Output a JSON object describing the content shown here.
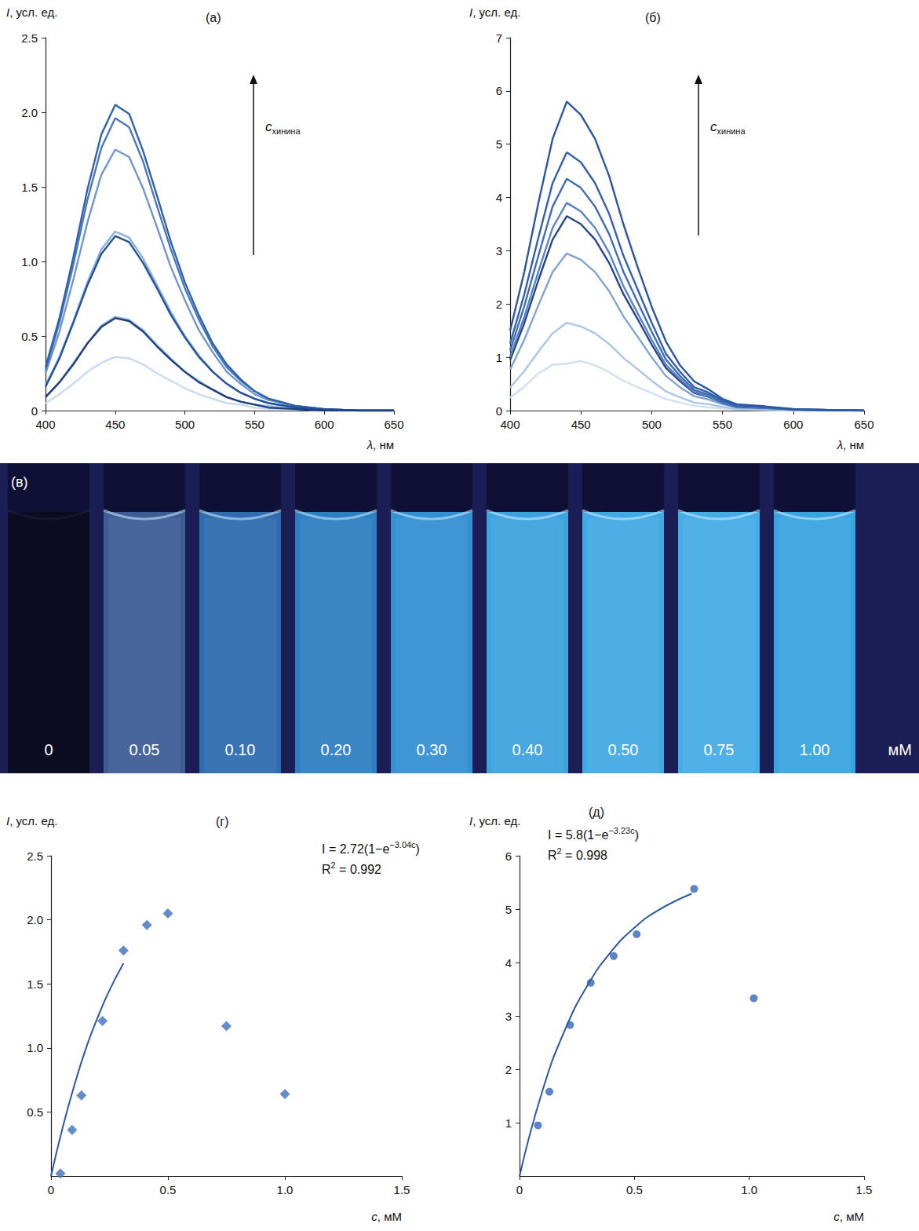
{
  "chart_data": [
    {
      "type": "line",
      "title": "(а)",
      "y_label": "I, усл. ед.",
      "x_label": "λ, нм",
      "x": [
        400,
        410,
        420,
        430,
        440,
        450,
        460,
        470,
        480,
        490,
        500,
        510,
        520,
        530,
        540,
        550,
        560,
        580,
        600,
        625,
        650
      ],
      "xlim": [
        400,
        650
      ],
      "xticks": [
        400,
        450,
        500,
        550,
        600,
        650
      ],
      "ylim": [
        0,
        2.5
      ],
      "yticks": [
        0,
        0.5,
        {
          "value": 1,
          "label": "1.0"
        },
        1.5,
        {
          "value": 2,
          "label": "2.0"
        },
        2.5
      ],
      "grid": false,
      "annotations": [
        {
          "text": "c",
          "subscript": "хинина"
        }
      ],
      "series": [
        {
          "color": "#c6dbef",
          "values": [
            0.05,
            0.11,
            0.18,
            0.26,
            0.32,
            0.36,
            0.35,
            0.31,
            0.25,
            0.2,
            0.15,
            0.11,
            0.08,
            0.05,
            0.04,
            0.02,
            0.01,
            0.01,
            0,
            0,
            0
          ]
        },
        {
          "color": "#9ebfe0",
          "values": [
            0.09,
            0.19,
            0.32,
            0.45,
            0.57,
            0.63,
            0.61,
            0.54,
            0.44,
            0.35,
            0.26,
            0.2,
            0.14,
            0.09,
            0.06,
            0.04,
            0.03,
            0.01,
            0,
            0,
            0
          ]
        },
        {
          "color": "#8aaedb",
          "values": [
            0.17,
            0.36,
            0.6,
            0.86,
            1.08,
            1.2,
            1.16,
            1.02,
            0.84,
            0.66,
            0.5,
            0.37,
            0.26,
            0.18,
            0.12,
            0.08,
            0.05,
            0.02,
            0.01,
            0,
            0
          ]
        },
        {
          "color": "#6f97cc",
          "values": [
            0.25,
            0.53,
            0.88,
            1.26,
            1.58,
            1.75,
            1.7,
            1.49,
            1.23,
            0.96,
            0.74,
            0.54,
            0.39,
            0.26,
            0.18,
            0.11,
            0.07,
            0.03,
            0.01,
            0,
            0
          ]
        },
        {
          "color": "#4a78be",
          "values": [
            0.27,
            0.59,
            0.98,
            1.41,
            1.76,
            1.96,
            1.9,
            1.67,
            1.37,
            1.08,
            0.82,
            0.61,
            0.43,
            0.29,
            0.2,
            0.13,
            0.08,
            0.03,
            0.01,
            0,
            0
          ]
        },
        {
          "color": "#2f62ad",
          "values": [
            0.29,
            0.62,
            1.03,
            1.48,
            1.85,
            2.05,
            1.99,
            1.74,
            1.44,
            1.13,
            0.86,
            0.64,
            0.45,
            0.31,
            0.21,
            0.13,
            0.08,
            0.03,
            0.01,
            0,
            0
          ]
        },
        {
          "color": "#24529a",
          "values": [
            0.16,
            0.35,
            0.59,
            0.84,
            1.05,
            1.17,
            1.13,
            0.99,
            0.82,
            0.64,
            0.49,
            0.36,
            0.26,
            0.18,
            0.12,
            0.08,
            0.05,
            0.02,
            0.01,
            0,
            0
          ]
        },
        {
          "color": "#1d3f7e",
          "values": [
            0.09,
            0.19,
            0.31,
            0.45,
            0.56,
            0.62,
            0.6,
            0.53,
            0.43,
            0.34,
            0.26,
            0.19,
            0.14,
            0.09,
            0.06,
            0.04,
            0.02,
            0.01,
            0,
            0,
            0
          ]
        }
      ]
    },
    {
      "type": "line",
      "title": "(б)",
      "y_label": "I, усл. ед.",
      "x_label": "λ, нм",
      "x": [
        400,
        410,
        420,
        430,
        440,
        450,
        460,
        470,
        480,
        490,
        500,
        510,
        520,
        530,
        540,
        550,
        560,
        580,
        600,
        625,
        650
      ],
      "xlim": [
        400,
        650
      ],
      "xticks": [
        400,
        450,
        500,
        550,
        600,
        650
      ],
      "ylim": [
        0,
        7
      ],
      "yticks": [
        0,
        1,
        2,
        3,
        4,
        5,
        6,
        7
      ],
      "grid": false,
      "annotations": [
        {
          "text": "c",
          "subscript": "хинина"
        }
      ],
      "series": [
        {
          "color": "#d0e0f2",
          "values": [
            0.24,
            0.45,
            0.7,
            0.86,
            0.88,
            0.93,
            0.85,
            0.72,
            0.56,
            0.44,
            0.33,
            0.22,
            0.15,
            0.09,
            0.06,
            0.04,
            0.02,
            0.01,
            0,
            0,
            0
          ]
        },
        {
          "color": "#a9c6e6",
          "values": [
            0.43,
            0.74,
            1.11,
            1.45,
            1.65,
            1.58,
            1.45,
            1.25,
            0.99,
            0.78,
            0.56,
            0.36,
            0.25,
            0.15,
            0.12,
            0.07,
            0.03,
            0.02,
            0.01,
            0,
            0
          ]
        },
        {
          "color": "#7ea4d4",
          "values": [
            0.77,
            1.33,
            1.98,
            2.6,
            2.95,
            2.83,
            2.6,
            2.24,
            1.77,
            1.39,
            1.0,
            0.65,
            0.44,
            0.27,
            0.21,
            0.12,
            0.06,
            0.04,
            0.01,
            0,
            0
          ]
        },
        {
          "color": "#24468a",
          "values": [
            0.95,
            1.64,
            2.45,
            3.21,
            3.65,
            3.5,
            3.21,
            2.77,
            2.19,
            1.72,
            1.24,
            0.8,
            0.55,
            0.33,
            0.26,
            0.15,
            0.07,
            0.05,
            0.02,
            0.01,
            0
          ]
        },
        {
          "color": "#5783c4",
          "values": [
            1.01,
            1.76,
            2.61,
            3.43,
            3.9,
            3.74,
            3.43,
            2.96,
            2.34,
            1.83,
            1.33,
            0.86,
            0.59,
            0.35,
            0.27,
            0.16,
            0.08,
            0.05,
            0.02,
            0.01,
            0
          ]
        },
        {
          "color": "#3f6db5",
          "values": [
            1.13,
            1.96,
            2.91,
            3.83,
            4.35,
            4.18,
            3.83,
            3.31,
            2.61,
            2.04,
            1.48,
            0.96,
            0.65,
            0.39,
            0.3,
            0.17,
            0.09,
            0.06,
            0.02,
            0.01,
            0
          ]
        },
        {
          "color": "#3360aa",
          "values": [
            1.26,
            2.18,
            3.25,
            4.27,
            4.85,
            4.66,
            4.27,
            3.69,
            2.91,
            2.28,
            1.65,
            1.07,
            0.73,
            0.44,
            0.34,
            0.19,
            0.1,
            0.07,
            0.02,
            0.01,
            0
          ]
        },
        {
          "color": "#2a579f",
          "values": [
            1.5,
            2.6,
            3.9,
            5.1,
            5.8,
            5.55,
            5.1,
            4.4,
            3.5,
            2.7,
            1.95,
            1.3,
            0.85,
            0.55,
            0.4,
            0.22,
            0.12,
            0.08,
            0.03,
            0.01,
            0
          ]
        }
      ]
    },
    {
      "type": "scatter",
      "title": "(г)",
      "y_label": "I, усл. ед.",
      "x_label": "c, мМ",
      "xlim": [
        0,
        1.5
      ],
      "xticks": [
        0,
        0.5,
        {
          "value": 1,
          "label": "1.0"
        },
        1.5
      ],
      "ylim": [
        0,
        2.5
      ],
      "yticks": [
        0.5,
        {
          "value": 1,
          "label": "1.0"
        },
        1.5,
        {
          "value": 2,
          "label": "2.0"
        },
        2.5
      ],
      "grid": false,
      "annotations": [
        {
          "text": "I = 2.72(1−e",
          "superscript": "−3.04c",
          "after": ")"
        },
        {
          "text": "R",
          "superscript": "2",
          "after": " = 0.992"
        }
      ],
      "series": [
        {
          "type": "scatter",
          "marker": "diamond",
          "color": "#3d6fc0",
          "x": [
            0.04,
            0.09,
            0.13,
            0.22,
            0.31,
            0.41,
            0.5,
            0.75,
            1.0
          ],
          "values": [
            0.02,
            0.36,
            0.63,
            1.21,
            1.76,
            1.96,
            2.05,
            1.17,
            0.64
          ]
        },
        {
          "type": "line",
          "color": "#2a5aa6",
          "x": [
            0,
            0.05,
            0.1,
            0.15,
            0.2,
            0.25,
            0.31
          ],
          "values": [
            0,
            0.38,
            0.71,
            1.0,
            1.24,
            1.45,
            1.66
          ]
        }
      ]
    },
    {
      "type": "scatter",
      "title": "(д)",
      "y_label": "I, усл. ед.",
      "x_label": "c, мМ",
      "xlim": [
        0,
        1.5
      ],
      "xticks": [
        0,
        0.5,
        {
          "value": 1,
          "label": "1.0"
        },
        1.5
      ],
      "ylim": [
        0,
        6
      ],
      "yticks": [
        1,
        2,
        3,
        4,
        5,
        6
      ],
      "grid": false,
      "annotations": [
        {
          "text": "I = 5.8(1−e",
          "superscript": "−3.23c",
          "after": ")"
        },
        {
          "text": "R",
          "superscript": "2",
          "after": " = 0.998"
        }
      ],
      "series": [
        {
          "type": "scatter",
          "marker": "circle",
          "color": "#3366b8",
          "x": [
            0.08,
            0.13,
            0.22,
            0.31,
            0.41,
            0.51,
            0.76,
            1.02
          ],
          "values": [
            0.95,
            1.58,
            2.83,
            3.62,
            4.12,
            4.53,
            5.38,
            3.33
          ]
        },
        {
          "type": "line",
          "color": "#2a5aa6",
          "x": [
            0,
            0.1,
            0.2,
            0.3,
            0.4,
            0.5,
            0.6,
            0.75
          ],
          "values": [
            0,
            1.6,
            2.76,
            3.6,
            4.21,
            4.65,
            4.97,
            5.29
          ]
        }
      ]
    }
  ],
  "photo": {
    "label": "(в)",
    "concentrations": [
      "0",
      "0.05",
      "0.10",
      "0.20",
      "0.30",
      "0.40",
      "0.50",
      "0.75",
      "1.00"
    ],
    "unit": "мМ",
    "colors": [
      "#0b0b22",
      "#3d5c96",
      "#2f6cae",
      "#2e7fc2",
      "#3590d2",
      "#3ea2df",
      "#41a9e4",
      "#45ade6",
      "#3aa4e0"
    ]
  }
}
